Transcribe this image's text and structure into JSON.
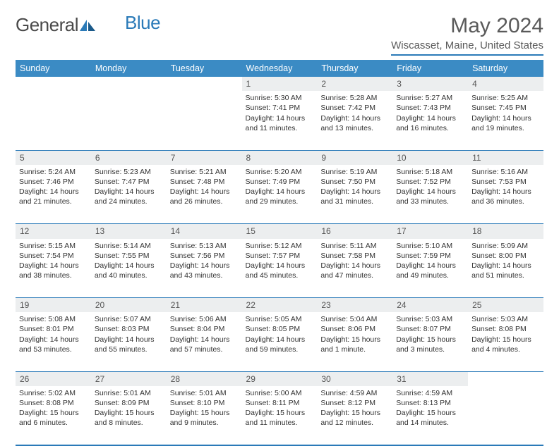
{
  "brand": {
    "part1": "General",
    "part2": "Blue"
  },
  "title": "May 2024",
  "location": "Wiscasset, Maine, United States",
  "colors": {
    "accent": "#3b8bc4",
    "rule": "#2a7ab8",
    "daybg": "#eceeef",
    "text": "#333333"
  },
  "weekdays": [
    "Sunday",
    "Monday",
    "Tuesday",
    "Wednesday",
    "Thursday",
    "Friday",
    "Saturday"
  ],
  "weeks": [
    [
      null,
      null,
      null,
      {
        "d": "1",
        "sr": "5:30 AM",
        "ss": "7:41 PM",
        "dl": "14 hours and 11 minutes."
      },
      {
        "d": "2",
        "sr": "5:28 AM",
        "ss": "7:42 PM",
        "dl": "14 hours and 13 minutes."
      },
      {
        "d": "3",
        "sr": "5:27 AM",
        "ss": "7:43 PM",
        "dl": "14 hours and 16 minutes."
      },
      {
        "d": "4",
        "sr": "5:25 AM",
        "ss": "7:45 PM",
        "dl": "14 hours and 19 minutes."
      }
    ],
    [
      {
        "d": "5",
        "sr": "5:24 AM",
        "ss": "7:46 PM",
        "dl": "14 hours and 21 minutes."
      },
      {
        "d": "6",
        "sr": "5:23 AM",
        "ss": "7:47 PM",
        "dl": "14 hours and 24 minutes."
      },
      {
        "d": "7",
        "sr": "5:21 AM",
        "ss": "7:48 PM",
        "dl": "14 hours and 26 minutes."
      },
      {
        "d": "8",
        "sr": "5:20 AM",
        "ss": "7:49 PM",
        "dl": "14 hours and 29 minutes."
      },
      {
        "d": "9",
        "sr": "5:19 AM",
        "ss": "7:50 PM",
        "dl": "14 hours and 31 minutes."
      },
      {
        "d": "10",
        "sr": "5:18 AM",
        "ss": "7:52 PM",
        "dl": "14 hours and 33 minutes."
      },
      {
        "d": "11",
        "sr": "5:16 AM",
        "ss": "7:53 PM",
        "dl": "14 hours and 36 minutes."
      }
    ],
    [
      {
        "d": "12",
        "sr": "5:15 AM",
        "ss": "7:54 PM",
        "dl": "14 hours and 38 minutes."
      },
      {
        "d": "13",
        "sr": "5:14 AM",
        "ss": "7:55 PM",
        "dl": "14 hours and 40 minutes."
      },
      {
        "d": "14",
        "sr": "5:13 AM",
        "ss": "7:56 PM",
        "dl": "14 hours and 43 minutes."
      },
      {
        "d": "15",
        "sr": "5:12 AM",
        "ss": "7:57 PM",
        "dl": "14 hours and 45 minutes."
      },
      {
        "d": "16",
        "sr": "5:11 AM",
        "ss": "7:58 PM",
        "dl": "14 hours and 47 minutes."
      },
      {
        "d": "17",
        "sr": "5:10 AM",
        "ss": "7:59 PM",
        "dl": "14 hours and 49 minutes."
      },
      {
        "d": "18",
        "sr": "5:09 AM",
        "ss": "8:00 PM",
        "dl": "14 hours and 51 minutes."
      }
    ],
    [
      {
        "d": "19",
        "sr": "5:08 AM",
        "ss": "8:01 PM",
        "dl": "14 hours and 53 minutes."
      },
      {
        "d": "20",
        "sr": "5:07 AM",
        "ss": "8:03 PM",
        "dl": "14 hours and 55 minutes."
      },
      {
        "d": "21",
        "sr": "5:06 AM",
        "ss": "8:04 PM",
        "dl": "14 hours and 57 minutes."
      },
      {
        "d": "22",
        "sr": "5:05 AM",
        "ss": "8:05 PM",
        "dl": "14 hours and 59 minutes."
      },
      {
        "d": "23",
        "sr": "5:04 AM",
        "ss": "8:06 PM",
        "dl": "15 hours and 1 minute."
      },
      {
        "d": "24",
        "sr": "5:03 AM",
        "ss": "8:07 PM",
        "dl": "15 hours and 3 minutes."
      },
      {
        "d": "25",
        "sr": "5:03 AM",
        "ss": "8:08 PM",
        "dl": "15 hours and 4 minutes."
      }
    ],
    [
      {
        "d": "26",
        "sr": "5:02 AM",
        "ss": "8:08 PM",
        "dl": "15 hours and 6 minutes."
      },
      {
        "d": "27",
        "sr": "5:01 AM",
        "ss": "8:09 PM",
        "dl": "15 hours and 8 minutes."
      },
      {
        "d": "28",
        "sr": "5:01 AM",
        "ss": "8:10 PM",
        "dl": "15 hours and 9 minutes."
      },
      {
        "d": "29",
        "sr": "5:00 AM",
        "ss": "8:11 PM",
        "dl": "15 hours and 11 minutes."
      },
      {
        "d": "30",
        "sr": "4:59 AM",
        "ss": "8:12 PM",
        "dl": "15 hours and 12 minutes."
      },
      {
        "d": "31",
        "sr": "4:59 AM",
        "ss": "8:13 PM",
        "dl": "15 hours and 14 minutes."
      },
      null
    ]
  ],
  "labels": {
    "sunrise": "Sunrise: ",
    "sunset": "Sunset: ",
    "daylight": "Daylight: "
  }
}
